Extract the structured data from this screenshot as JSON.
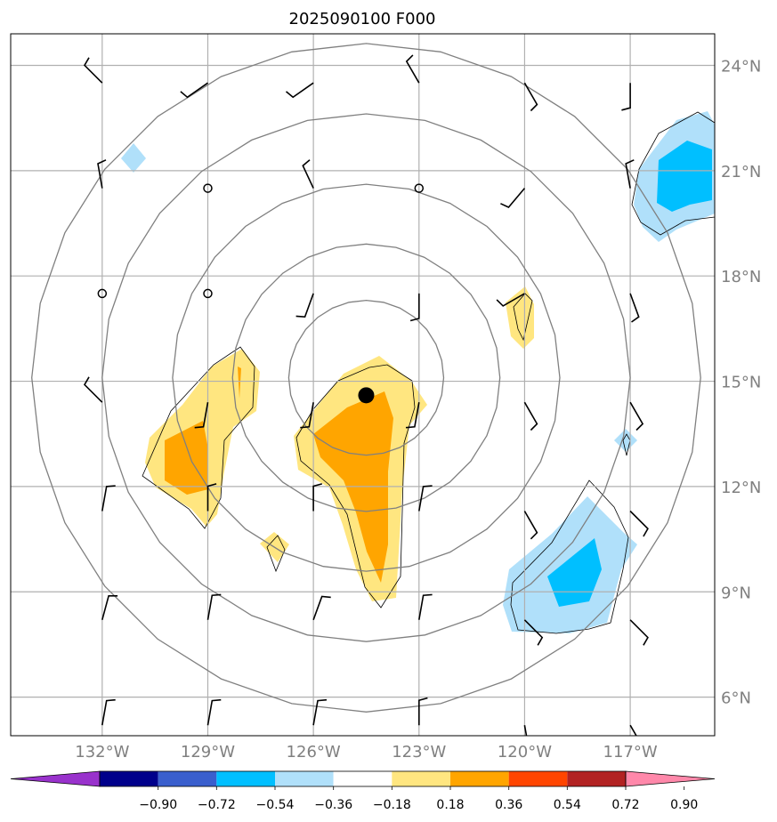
{
  "title": "2025090100 F000",
  "map": {
    "lon_labels": [
      "132°W",
      "129°W",
      "126°W",
      "123°W",
      "120°W",
      "117°W"
    ],
    "lat_labels": [
      "24°N",
      "21°N",
      "18°N",
      "15°N",
      "12°N",
      "9°N",
      "6°N"
    ],
    "lon_values": [
      -132,
      -129,
      -126,
      -123,
      -120,
      -117
    ],
    "lat_values": [
      24,
      21,
      18,
      15,
      12,
      9,
      6
    ],
    "lon_range": [
      -134.6,
      -114.6
    ],
    "lat_range": [
      4.9,
      24.9
    ],
    "storm_center": {
      "lon": -124.5,
      "lat": 14.6
    },
    "range_rings_deg": [
      2.2,
      3.8,
      5.5,
      7.5,
      9.5
    ]
  },
  "colorbar": {
    "labels": [
      "−0.90",
      "−0.72",
      "−0.54",
      "−0.36",
      "−0.18",
      "0.18",
      "0.36",
      "0.54",
      "0.72",
      "0.90"
    ],
    "colors": [
      "#9932cc",
      "#00008b",
      "#3a5fcd",
      "#00bfff",
      "#b0e0fa",
      "#ffffff",
      "#ffe680",
      "#ffa500",
      "#ff4500",
      "#b22222",
      "#ff88aa"
    ]
  },
  "colors": {
    "grid": "#b0b0b0",
    "ring": "#808080",
    "outline": "#000000"
  }
}
